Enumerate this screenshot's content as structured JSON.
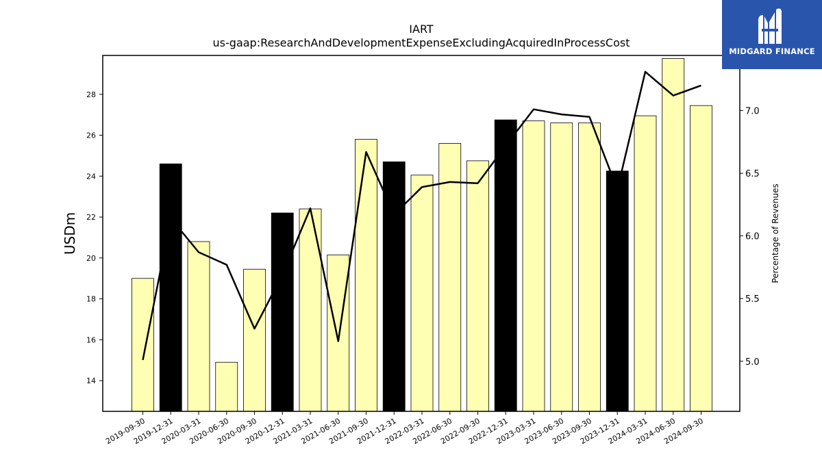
{
  "chart_data": {
    "type": "bar",
    "title": "IART",
    "subtitle": "us-gaap:ResearchAndDevelopmentExpenseExcludingAcquiredInProcessCost",
    "ylabel": "USDm",
    "y2label": "Percentage of Revenues",
    "ylim": [
      12.5,
      29.9
    ],
    "y2lim": [
      4.6,
      7.44
    ],
    "yticks": [
      14,
      16,
      18,
      20,
      22,
      24,
      26,
      28
    ],
    "y2ticks": [
      5.0,
      5.5,
      6.0,
      6.5,
      7.0
    ],
    "grid": false,
    "categories": [
      "2019-09-30",
      "2019-12-31",
      "2020-03-31",
      "2020-06-30",
      "2020-09-30",
      "2020-12-31",
      "2021-03-31",
      "2021-06-30",
      "2021-09-30",
      "2021-12-31",
      "2022-03-31",
      "2022-06-30",
      "2022-09-30",
      "2022-12-31",
      "2023-03-31",
      "2023-06-30",
      "2023-09-30",
      "2023-12-31",
      "2024-03-31",
      "2024-06-30",
      "2024-09-30"
    ],
    "series": [
      {
        "kind": "bar",
        "axis": "left",
        "values": [
          19.0,
          24.6,
          20.8,
          14.9,
          19.45,
          22.2,
          22.4,
          20.15,
          25.8,
          24.7,
          24.05,
          25.6,
          24.75,
          26.75,
          26.7,
          26.6,
          26.6,
          24.25,
          26.95,
          29.75,
          27.45
        ],
        "highlight": [
          false,
          true,
          false,
          false,
          false,
          true,
          false,
          false,
          false,
          true,
          false,
          false,
          false,
          true,
          false,
          false,
          false,
          true,
          false,
          false,
          false
        ]
      },
      {
        "kind": "line",
        "axis": "right",
        "values": [
          5.01,
          6.14,
          5.87,
          5.77,
          5.26,
          5.69,
          6.22,
          5.16,
          6.67,
          6.17,
          6.39,
          6.43,
          6.42,
          6.72,
          7.01,
          6.97,
          6.95,
          6.37,
          7.31,
          7.12,
          7.2
        ]
      }
    ],
    "colors": {
      "bar_fill": "#ffffb3",
      "bar_highlight": "#000000",
      "bar_edge": "#000000",
      "line": "#000000"
    }
  },
  "logo": {
    "text": "MIDGARD FINANCE",
    "background": "#2a55ad"
  }
}
